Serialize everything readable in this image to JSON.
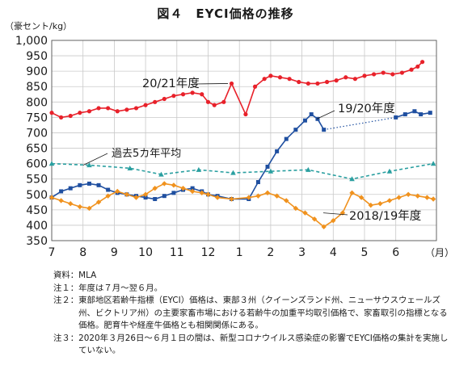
{
  "chart_data": {
    "type": "line",
    "title": "図４　EYCI価格の推移",
    "y_unit_label": "（豪セント/kg）",
    "x_unit_label": "（月）",
    "x_month_ticks": [
      "7",
      "8",
      "9",
      "10",
      "11",
      "12",
      "1",
      "2",
      "3",
      "4",
      "5",
      "6"
    ],
    "ylim": [
      350,
      1000
    ],
    "y_ticks": [
      "350",
      "400",
      "450",
      "500",
      "550",
      "600",
      "650",
      "700",
      "750",
      "800",
      "850",
      "900",
      "950",
      "1,000"
    ],
    "grid": true,
    "xlim": [
      0,
      12.3
    ],
    "series": [
      {
        "name": "20/21年度",
        "color": "#e8212a",
        "marker": "circle",
        "x": [
          0.0,
          0.3,
          0.6,
          0.9,
          1.2,
          1.5,
          1.8,
          2.1,
          2.4,
          2.7,
          3.0,
          3.3,
          3.6,
          3.9,
          4.2,
          4.5,
          4.8,
          5.0,
          5.2,
          5.5,
          5.75,
          6.2,
          6.5,
          6.8,
          7.0,
          7.3,
          7.6,
          7.9,
          8.2,
          8.5,
          8.8,
          9.1,
          9.4,
          9.7,
          10.0,
          10.3,
          10.6,
          10.9,
          11.2,
          11.5,
          11.7,
          11.85
        ],
        "y": [
          765,
          750,
          755,
          765,
          770,
          780,
          780,
          770,
          775,
          780,
          790,
          800,
          810,
          820,
          825,
          830,
          825,
          800,
          790,
          800,
          860,
          760,
          850,
          875,
          885,
          880,
          875,
          865,
          860,
          860,
          865,
          870,
          880,
          875,
          885,
          890,
          895,
          890,
          895,
          905,
          915,
          930
        ]
      },
      {
        "name": "19/20年度",
        "color": "#1f4fa0",
        "marker": "square",
        "x": [
          0.0,
          0.3,
          0.6,
          0.9,
          1.2,
          1.5,
          1.8,
          2.1,
          2.4,
          2.7,
          3.0,
          3.3,
          3.6,
          3.9,
          4.2,
          4.5,
          4.8,
          5.0,
          5.3,
          5.75,
          6.3,
          6.6,
          6.9,
          7.2,
          7.5,
          7.8,
          8.1,
          8.3,
          8.5,
          8.7,
          11.0,
          11.3,
          11.6,
          11.8,
          12.1
        ],
        "y": [
          490,
          510,
          520,
          530,
          535,
          530,
          515,
          505,
          500,
          495,
          490,
          485,
          495,
          505,
          515,
          520,
          510,
          500,
          495,
          485,
          485,
          540,
          590,
          640,
          680,
          710,
          740,
          760,
          745,
          710,
          750,
          760,
          770,
          760,
          765
        ],
        "gap_after_index": 29
      },
      {
        "name": "2018/19年度",
        "color": "#f0921e",
        "marker": "diamond",
        "x": [
          0.0,
          0.3,
          0.6,
          0.9,
          1.2,
          1.5,
          1.8,
          2.1,
          2.4,
          2.7,
          3.0,
          3.3,
          3.6,
          3.9,
          4.2,
          4.5,
          4.8,
          5.0,
          5.3,
          5.75,
          6.3,
          6.6,
          6.9,
          7.2,
          7.5,
          7.8,
          8.1,
          8.4,
          8.7,
          9.0,
          9.3,
          9.6,
          9.9,
          10.2,
          10.5,
          10.8,
          11.1,
          11.4,
          11.7,
          12.0,
          12.2
        ],
        "y": [
          490,
          480,
          470,
          460,
          455,
          475,
          495,
          510,
          500,
          490,
          500,
          520,
          535,
          530,
          520,
          510,
          505,
          500,
          490,
          485,
          490,
          495,
          505,
          495,
          480,
          455,
          440,
          420,
          395,
          415,
          440,
          505,
          490,
          465,
          470,
          480,
          490,
          500,
          495,
          490,
          485
        ]
      },
      {
        "name": "過去5カ年平均",
        "color": "#2a9fa0",
        "marker": "triangle",
        "dashed": true,
        "x": [
          0.0,
          1.2,
          2.5,
          3.5,
          4.7,
          5.8,
          7.0,
          8.2,
          9.6,
          10.8,
          12.2
        ],
        "y": [
          600,
          595,
          585,
          565,
          580,
          570,
          575,
          580,
          550,
          575,
          600
        ]
      }
    ],
    "annotations": [
      {
        "text": "20/21年度",
        "series": "20/21年度"
      },
      {
        "text": "19/20年度",
        "series": "19/20年度"
      },
      {
        "text": "過去5カ年平均",
        "series": "過去5カ年平均"
      },
      {
        "text": "2018/19年度",
        "series": "2018/19年度"
      }
    ]
  },
  "notes": [
    {
      "key": "資料：",
      "text": "MLA"
    },
    {
      "key": "注１：",
      "text": "年度は７月～翌６月。"
    },
    {
      "key": "注２：",
      "text": "東部地区若齢牛指標（EYCI）価格は、東部３州（クイーンズランド州、ニューサウスウェールズ州、ビクトリア州）の主要家畜市場における若齢牛の加重平均取引価格で、家畜取引の指標となる価格。肥育牛や経産牛価格とも相関関係にある。"
    },
    {
      "key": "注３：",
      "text": "2020年３月26日～６月１日の間は、新型コロナウイルス感染症の影響でEYCI価格の集計を実施していない。"
    }
  ]
}
